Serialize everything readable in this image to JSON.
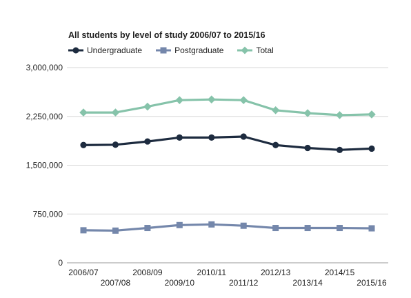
{
  "chart_data": {
    "type": "line",
    "title": "All students by level of study 2006/07 to 2015/16",
    "xlabel": "",
    "ylabel": "",
    "categories": [
      "2006/07",
      "2007/08",
      "2008/09",
      "2009/10",
      "2010/11",
      "2011/12",
      "2012/13",
      "2013/14",
      "2014/15",
      "2015/16"
    ],
    "ylim": [
      0,
      3000000
    ],
    "yticks": [
      0,
      750000,
      1500000,
      2250000,
      3000000
    ],
    "ytick_labels": [
      "0",
      "750,000",
      "1,500,000",
      "2,250,000",
      "3,000,000"
    ],
    "grid": true,
    "legend": "top-left",
    "series": [
      {
        "name": "Undergraduate",
        "color": "#1d2b3f",
        "marker": "circle",
        "values": [
          1810000,
          1815000,
          1865000,
          1925000,
          1925000,
          1940000,
          1810000,
          1765000,
          1735000,
          1755000
        ]
      },
      {
        "name": "Postgraduate",
        "color": "#7487ab",
        "marker": "square",
        "values": [
          500000,
          495000,
          535000,
          580000,
          590000,
          570000,
          535000,
          535000,
          535000,
          530000
        ]
      },
      {
        "name": "Total",
        "color": "#86c3aa",
        "marker": "diamond",
        "values": [
          2310000,
          2310000,
          2400000,
          2500000,
          2510000,
          2500000,
          2345000,
          2300000,
          2270000,
          2280000
        ]
      }
    ]
  }
}
